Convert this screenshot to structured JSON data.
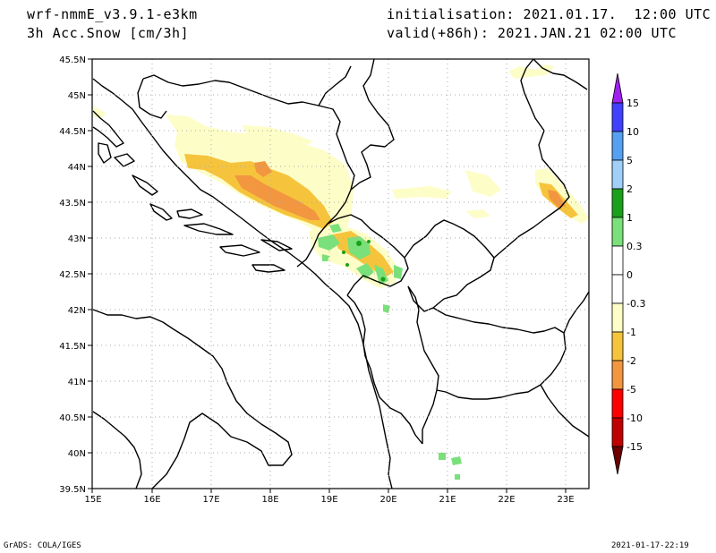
{
  "header": {
    "model": "wrf-nmmE_v3.9.1-e3km",
    "variable": "3h Acc.Snow [cm/3h]",
    "initialisation": "initialisation: 2021.01.17.  12:00 UTC",
    "valid": "valid(+86h): 2021.JAN.21 02:00 UTC"
  },
  "footer": {
    "left": "GrADS: COLA/IGES",
    "right": "2021-01-17-22:19"
  },
  "map": {
    "lon_range": [
      15,
      23.3
    ],
    "lat_range": [
      39.5,
      45.5
    ],
    "lon_labels": [
      "15E",
      "16E",
      "17E",
      "18E",
      "19E",
      "20E",
      "21E",
      "22E",
      "23E"
    ],
    "lat_labels": [
      "39.5N",
      "40N",
      "40.5N",
      "41N",
      "41.5N",
      "42N",
      "42.5N",
      "43N",
      "43.5N",
      "44N",
      "44.5N",
      "45N",
      "45.5N"
    ]
  },
  "colorbar": {
    "labels": [
      "15",
      "10",
      "5",
      "2",
      "1",
      "0.3",
      "0",
      "-0.3",
      "-1",
      "-2",
      "-5",
      "-10",
      "-15"
    ],
    "colors": {
      "top": "#a020f0",
      "c15": "#4040ff",
      "c10": "#55a0f0",
      "c5": "#a0d0f8",
      "c2": "#1aa01a",
      "c1": "#7ae07a",
      "c0": "#ffffff",
      "m03": "#fdfdc8",
      "m1": "#f6c43c",
      "m2": "#f29640",
      "m5": "#ff0000",
      "m10": "#c00000",
      "bottom": "#6a0000"
    }
  },
  "colors": {
    "light_yellow": "#fdfdc8",
    "yellow_orange": "#f6c43c",
    "orange": "#f29640",
    "light_green": "#7ae07a",
    "dark_green": "#1aa01a"
  }
}
